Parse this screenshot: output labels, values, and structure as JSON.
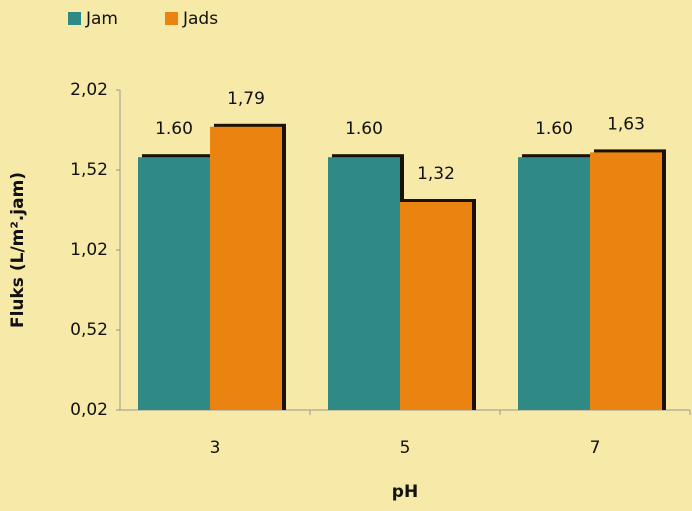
{
  "chart_data": {
    "type": "bar",
    "x_label": "pH",
    "y_label": "Fluks (L/m².jam)",
    "categories": [
      "3",
      "5",
      "7"
    ],
    "series": [
      {
        "name": "Jam",
        "color": "#2f8a86",
        "values": [
          1.6,
          1.6,
          1.6
        ],
        "value_labels": [
          "1.60",
          "1.60",
          "1.60"
        ]
      },
      {
        "name": "Jads",
        "color": "#ea8310",
        "values": [
          1.79,
          1.32,
          1.63
        ],
        "value_labels": [
          "1,79",
          "1,32",
          "1,63"
        ]
      }
    ],
    "ylim": [
      0.02,
      2.02
    ],
    "yticks": [
      {
        "value": 0.02,
        "label": "0,02"
      },
      {
        "value": 0.52,
        "label": "0,52"
      },
      {
        "value": 1.02,
        "label": "1,02"
      },
      {
        "value": 1.52,
        "label": "1,52"
      },
      {
        "value": 2.02,
        "label": "2,02"
      }
    ],
    "legend": "top-left"
  }
}
